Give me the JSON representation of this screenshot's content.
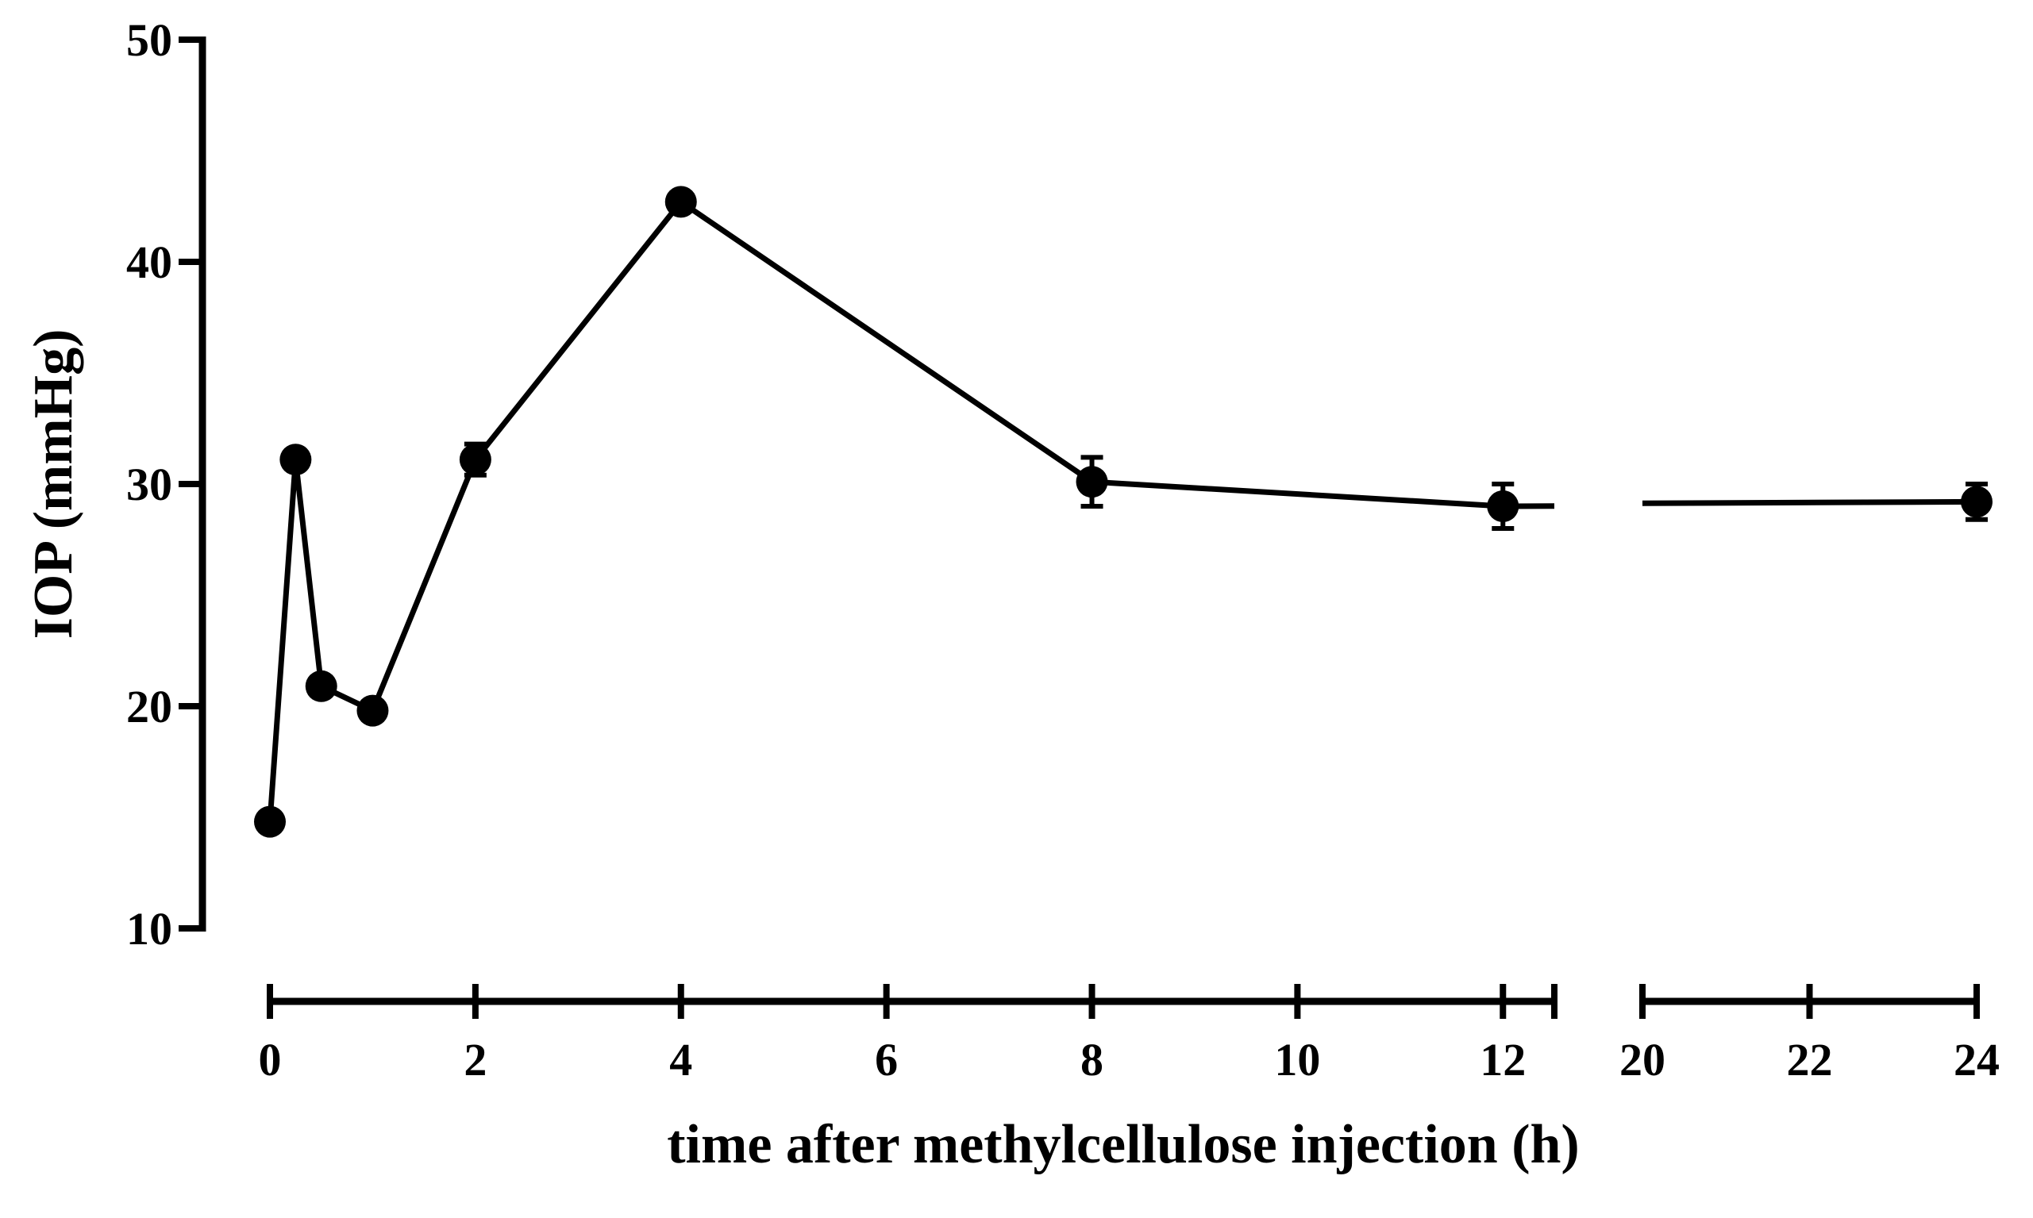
{
  "chart_data": {
    "type": "line",
    "xlabel": "time after methylcellulose injection (h)",
    "ylabel": "IOP (mmHg)",
    "ylim": [
      10,
      50
    ],
    "yticks": [
      10,
      20,
      30,
      40,
      50
    ],
    "x_segments": [
      {
        "range": [
          0,
          12.5
        ],
        "ticks": [
          0,
          2,
          4,
          6,
          8,
          10,
          12
        ]
      },
      {
        "range": [
          20,
          24
        ],
        "ticks": [
          20,
          22,
          24
        ]
      }
    ],
    "axis_break": [
      12.5,
      20
    ],
    "grid": false,
    "series": [
      {
        "marker": "circle",
        "color": "#000000",
        "points": [
          {
            "x": 0,
            "y": 14.8,
            "err": 0.3
          },
          {
            "x": 0.25,
            "y": 31.1,
            "err": 0.4
          },
          {
            "x": 0.5,
            "y": 20.9,
            "err": 0.4
          },
          {
            "x": 1,
            "y": 19.8,
            "err": 0.4
          },
          {
            "x": 2,
            "y": 31.1,
            "err": 0.7
          },
          {
            "x": 4,
            "y": 42.7,
            "err": 0.4
          },
          {
            "x": 8,
            "y": 30.1,
            "err": 1.1
          },
          {
            "x": 12,
            "y": 29.0,
            "err": 1.0
          },
          {
            "x": 24,
            "y": 29.2,
            "err": 0.8
          }
        ]
      }
    ]
  }
}
